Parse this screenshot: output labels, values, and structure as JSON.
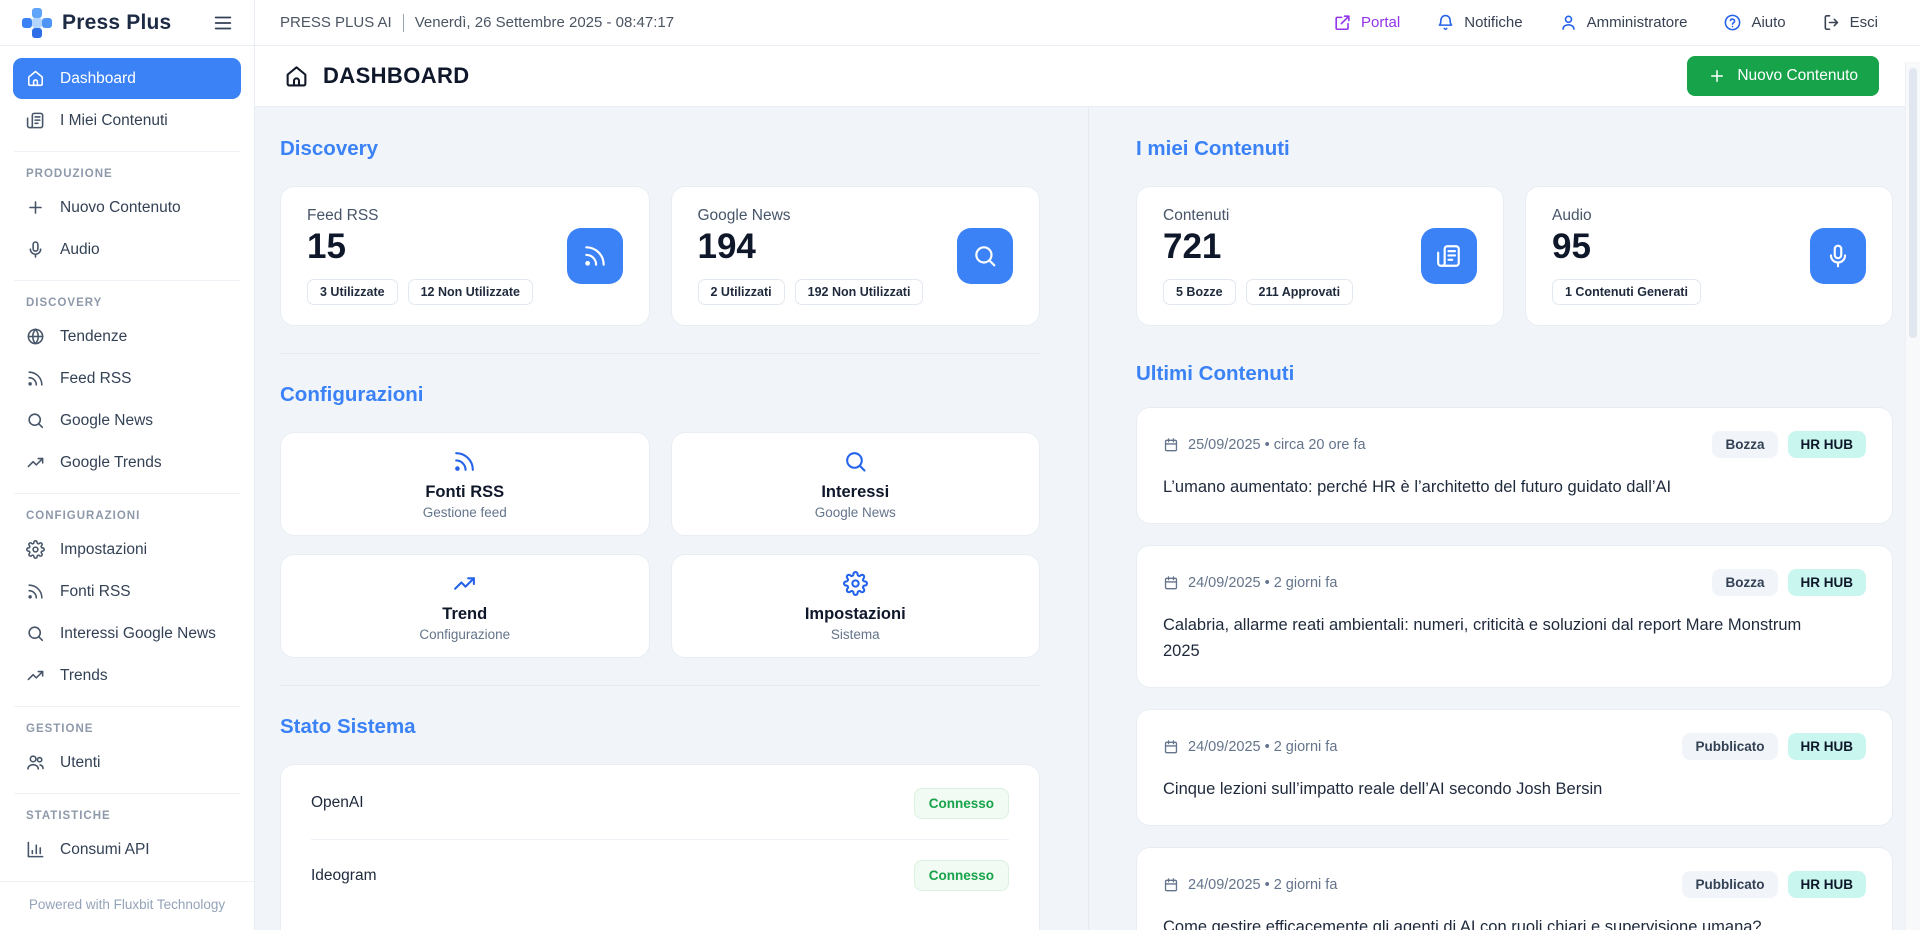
{
  "topbar": {
    "brand": "Press Plus",
    "app_label": "PRESS PLUS AI",
    "datetime": "Venerdì, 26 Settembre 2025 - 08:47:17",
    "portal": "Portal",
    "notifications": "Notifiche",
    "admin": "Amministratore",
    "help": "Aiuto",
    "logout": "Esci",
    "icons": [
      "external-link-icon",
      "bell-icon",
      "user-icon",
      "help-circle-icon",
      "logout-icon",
      "menu-icon"
    ]
  },
  "sidebar": {
    "sections": [
      {
        "label": "",
        "items": [
          {
            "label": "Dashboard",
            "icon": "home-icon",
            "active": true
          },
          {
            "label": "I Miei Contenuti",
            "icon": "newspaper-icon"
          }
        ]
      },
      {
        "label": "PRODUZIONE",
        "items": [
          {
            "label": "Nuovo Contenuto",
            "icon": "plus-icon"
          },
          {
            "label": "Audio",
            "icon": "microphone-icon"
          }
        ]
      },
      {
        "label": "DISCOVERY",
        "items": [
          {
            "label": "Tendenze",
            "icon": "globe-icon"
          },
          {
            "label": "Feed RSS",
            "icon": "rss-icon"
          },
          {
            "label": "Google News",
            "icon": "search-icon"
          },
          {
            "label": "Google Trends",
            "icon": "trending-up-icon"
          }
        ]
      },
      {
        "label": "CONFIGURAZIONI",
        "items": [
          {
            "label": "Impostazioni",
            "icon": "gear-icon"
          },
          {
            "label": "Fonti RSS",
            "icon": "rss-icon"
          },
          {
            "label": "Interessi Google News",
            "icon": "search-icon"
          },
          {
            "label": "Trends",
            "icon": "trending-up-icon"
          }
        ]
      },
      {
        "label": "GESTIONE",
        "items": [
          {
            "label": "Utenti",
            "icon": "users-icon"
          }
        ]
      },
      {
        "label": "STATISTICHE",
        "items": [
          {
            "label": "Consumi API",
            "icon": "bar-chart-icon"
          }
        ]
      }
    ],
    "footer": "Powered with Fluxbit Technology"
  },
  "header": {
    "title": "DASHBOARD",
    "title_icon": "home-icon",
    "new_button": "Nuovo Contenuto"
  },
  "discovery": {
    "title": "Discovery",
    "feed_rss": {
      "label": "Feed RSS",
      "value": "15",
      "badge1": "3 Utilizzate",
      "badge2": "12 Non Utilizzate",
      "icon": "rss-icon"
    },
    "google_news": {
      "label": "Google News",
      "value": "194",
      "badge1": "2 Utilizzati",
      "badge2": "192 Non Utilizzati",
      "icon": "search-icon"
    }
  },
  "configurazioni": {
    "title": "Configurazioni",
    "cards": [
      {
        "title": "Fonti RSS",
        "subtitle": "Gestione feed",
        "icon": "rss-icon"
      },
      {
        "title": "Interessi",
        "subtitle": "Google News",
        "icon": "search-icon"
      },
      {
        "title": "Trend",
        "subtitle": "Configurazione",
        "icon": "trending-up-icon"
      },
      {
        "title": "Impostazioni",
        "subtitle": "Sistema",
        "icon": "gear-icon"
      }
    ]
  },
  "stato_sistema": {
    "title": "Stato Sistema",
    "services": [
      {
        "name": "OpenAI",
        "status": "Connesso"
      },
      {
        "name": "Ideogram",
        "status": "Connesso"
      }
    ]
  },
  "miei_contenuti": {
    "title": "I miei Contenuti",
    "contenuti": {
      "label": "Contenuti",
      "value": "721",
      "badge1": "5 Bozze",
      "badge2": "211 Approvati",
      "icon": "newspaper-icon"
    },
    "audio": {
      "label": "Audio",
      "value": "95",
      "badge1": "1 Contenuti Generati",
      "icon": "microphone-icon"
    }
  },
  "ultimi_contenuti": {
    "title": "Ultimi Contenuti",
    "items": [
      {
        "meta": "25/09/2025 • circa 20 ore fa",
        "status": "Bozza",
        "tag": "HR HUB",
        "title": "L’umano aumentato: perché HR è l’architetto del futuro guidato dall’AI"
      },
      {
        "meta": "24/09/2025 • 2 giorni fa",
        "status": "Bozza",
        "tag": "HR HUB",
        "title": "Calabria, allarme reati ambientali: numeri, criticità e soluzioni dal report Mare Monstrum 2025"
      },
      {
        "meta": "24/09/2025 • 2 giorni fa",
        "status": "Pubblicato",
        "tag": "HR HUB",
        "title": "Cinque lezioni sull’impatto reale dell’AI secondo Josh Bersin"
      },
      {
        "meta": "24/09/2025 • 2 giorni fa",
        "status": "Pubblicato",
        "tag": "HR HUB",
        "title": "Come gestire efficacemente gli agenti di AI con ruoli chiari e supervisione umana?"
      }
    ]
  },
  "colors": {
    "accent_blue": "#3b82f6",
    "success_green": "#16a34a",
    "portal_purple": "#9333ea",
    "tag_cyan": "#c9f7ef",
    "status_gray": "#f1f5f9",
    "background": "#f1f5f9"
  }
}
